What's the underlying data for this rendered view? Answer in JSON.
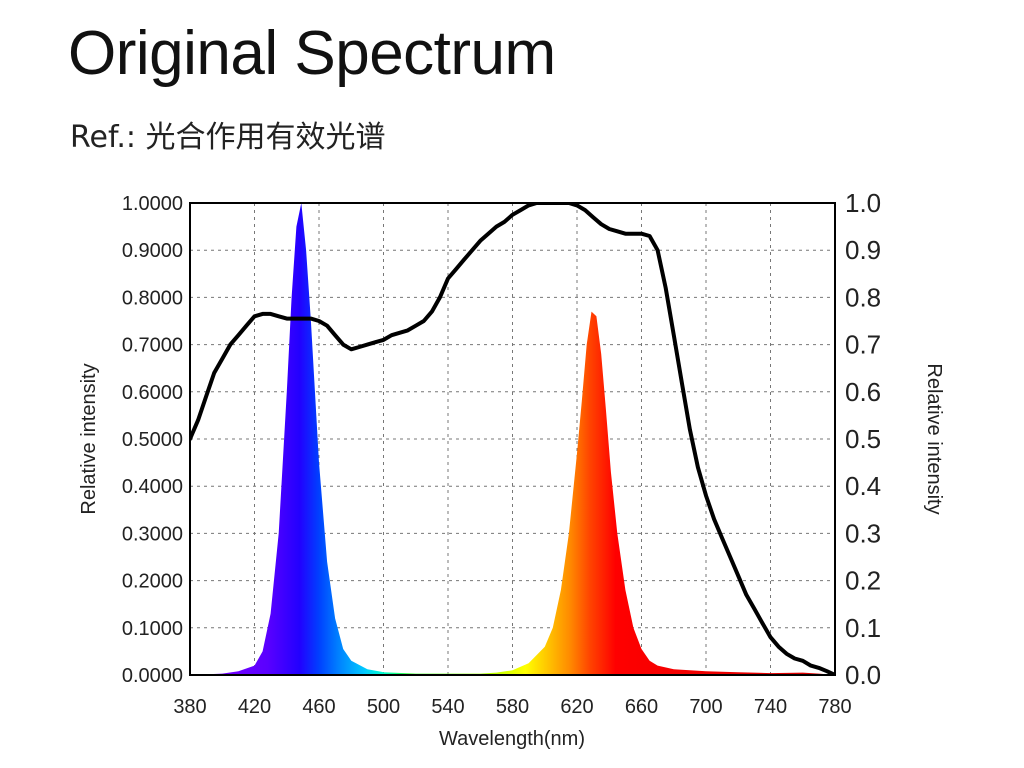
{
  "title": "Original Spectrum",
  "subtitle": "Ref.: 光合作用有效光谱",
  "chart_data": {
    "type": "area",
    "xlabel": "Wavelength(nm)",
    "ylabel_left": "Relative intensity",
    "ylabel_right": "Relative intensity",
    "xlim": [
      380,
      780
    ],
    "ylim_left": [
      0,
      1
    ],
    "ylim_right": [
      0,
      1
    ],
    "x_ticks": [
      "380",
      "420",
      "460",
      "500",
      "540",
      "580",
      "620",
      "660",
      "700",
      "740",
      "780"
    ],
    "y_ticks_left": [
      "0.0000",
      "0.1000",
      "0.2000",
      "0.3000",
      "0.4000",
      "0.5000",
      "0.6000",
      "0.7000",
      "0.8000",
      "0.9000",
      "1.0000"
    ],
    "y_ticks_right": [
      "0.0",
      "0.1",
      "0.2",
      "0.3",
      "0.4",
      "0.5",
      "0.6",
      "0.7",
      "0.8",
      "0.9",
      "1.0"
    ],
    "grid": true,
    "series": [
      {
        "axis": "left",
        "style": "spectrum-fill",
        "x": [
          380,
          400,
          410,
          420,
          425,
          430,
          435,
          440,
          443,
          446,
          449,
          452,
          455,
          460,
          465,
          470,
          475,
          480,
          490,
          500,
          520,
          540,
          560,
          570,
          580,
          590,
          600,
          605,
          610,
          615,
          620,
          623,
          626,
          629,
          632,
          635,
          638,
          641,
          645,
          650,
          655,
          660,
          665,
          670,
          680,
          700,
          720,
          740,
          760,
          770,
          780
        ],
        "y": [
          0.0,
          0.003,
          0.008,
          0.02,
          0.05,
          0.13,
          0.3,
          0.6,
          0.8,
          0.95,
          1.0,
          0.9,
          0.75,
          0.45,
          0.24,
          0.12,
          0.055,
          0.03,
          0.012,
          0.006,
          0.003,
          0.003,
          0.003,
          0.005,
          0.01,
          0.025,
          0.06,
          0.1,
          0.18,
          0.3,
          0.47,
          0.58,
          0.7,
          0.77,
          0.76,
          0.68,
          0.56,
          0.43,
          0.3,
          0.18,
          0.1,
          0.055,
          0.03,
          0.02,
          0.012,
          0.008,
          0.006,
          0.004,
          0.005,
          0.003,
          0.0
        ]
      },
      {
        "axis": "right",
        "style": "line",
        "color": "#000000",
        "x": [
          380,
          385,
          390,
          395,
          400,
          405,
          410,
          415,
          420,
          425,
          430,
          435,
          440,
          445,
          450,
          455,
          460,
          465,
          470,
          475,
          480,
          485,
          490,
          495,
          500,
          505,
          510,
          515,
          520,
          525,
          530,
          535,
          540,
          545,
          550,
          555,
          560,
          565,
          570,
          575,
          580,
          585,
          590,
          595,
          600,
          605,
          610,
          615,
          620,
          625,
          630,
          635,
          640,
          645,
          650,
          655,
          660,
          665,
          670,
          675,
          680,
          685,
          690,
          695,
          700,
          705,
          710,
          715,
          720,
          725,
          730,
          735,
          740,
          745,
          750,
          755,
          760,
          765,
          770,
          775,
          780
        ],
        "y": [
          0.5,
          0.54,
          0.59,
          0.64,
          0.67,
          0.7,
          0.72,
          0.74,
          0.76,
          0.765,
          0.765,
          0.76,
          0.755,
          0.755,
          0.755,
          0.755,
          0.75,
          0.74,
          0.72,
          0.7,
          0.69,
          0.695,
          0.7,
          0.705,
          0.71,
          0.72,
          0.725,
          0.73,
          0.74,
          0.75,
          0.77,
          0.8,
          0.84,
          0.86,
          0.88,
          0.9,
          0.92,
          0.935,
          0.95,
          0.96,
          0.975,
          0.985,
          0.995,
          1.0,
          1.0,
          1.0,
          1.0,
          1.0,
          0.995,
          0.985,
          0.97,
          0.955,
          0.945,
          0.94,
          0.935,
          0.935,
          0.935,
          0.93,
          0.9,
          0.82,
          0.72,
          0.62,
          0.52,
          0.44,
          0.38,
          0.33,
          0.29,
          0.25,
          0.21,
          0.17,
          0.14,
          0.11,
          0.08,
          0.06,
          0.045,
          0.035,
          0.03,
          0.02,
          0.015,
          0.008,
          0.0
        ]
      }
    ]
  }
}
